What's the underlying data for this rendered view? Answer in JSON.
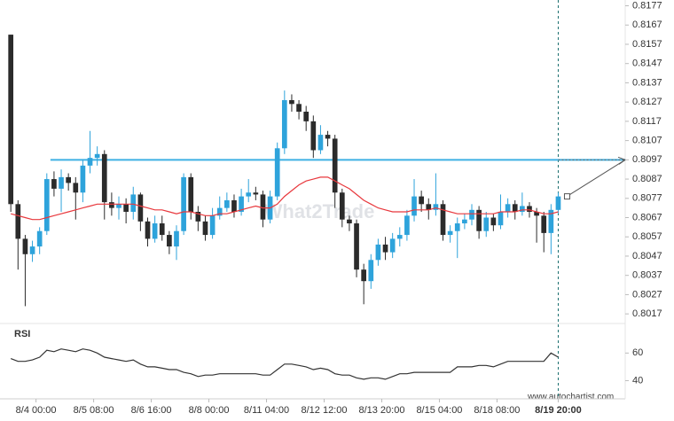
{
  "chart_data": [
    {
      "type": "candlestick",
      "open": [
        0.8162,
        0.8074,
        0.8056,
        0.8048,
        0.8052,
        0.806,
        0.8087,
        0.8082,
        0.8088,
        0.8085,
        0.808,
        0.8094,
        0.8098,
        0.81,
        0.8075,
        0.8072,
        0.8074,
        0.807,
        0.8079,
        0.8065,
        0.8056,
        0.8064,
        0.8058,
        0.8052,
        0.806,
        0.8088,
        0.807,
        0.8065,
        0.8058,
        0.8068,
        0.8072,
        0.8076,
        0.807,
        0.8078,
        0.808,
        0.8079,
        0.8066,
        0.8078,
        0.8103,
        0.8128,
        0.8126,
        0.8122,
        0.8117,
        0.8102,
        0.811,
        0.8108,
        0.808,
        0.8066,
        0.8064,
        0.804,
        0.8034,
        0.8045,
        0.8053,
        0.8049,
        0.8056,
        0.8058,
        0.8068,
        0.8078,
        0.8074,
        0.8071,
        0.8074,
        0.8058,
        0.806,
        0.8064,
        0.8066,
        0.8071,
        0.806,
        0.8067,
        0.8063,
        0.807,
        0.8074,
        0.807,
        0.8073,
        0.807,
        0.8068,
        0.8059,
        0.8071
      ],
      "high": [
        0.8162,
        0.8076,
        0.8058,
        0.8055,
        0.8062,
        0.809,
        0.8091,
        0.8092,
        0.809,
        0.8088,
        0.8097,
        0.8112,
        0.8104,
        0.8102,
        0.808,
        0.8078,
        0.8077,
        0.8083,
        0.808,
        0.8067,
        0.8068,
        0.8068,
        0.806,
        0.8063,
        0.809,
        0.809,
        0.8073,
        0.8068,
        0.8072,
        0.8078,
        0.808,
        0.8079,
        0.8082,
        0.8087,
        0.8083,
        0.8081,
        0.8081,
        0.8106,
        0.8133,
        0.8131,
        0.8128,
        0.8125,
        0.812,
        0.8115,
        0.8112,
        0.811,
        0.8082,
        0.8068,
        0.8066,
        0.8043,
        0.8048,
        0.8056,
        0.8057,
        0.8059,
        0.8062,
        0.8071,
        0.8087,
        0.8081,
        0.8077,
        0.809,
        0.8076,
        0.8063,
        0.8067,
        0.8069,
        0.8074,
        0.8073,
        0.807,
        0.8069,
        0.8079,
        0.8077,
        0.8076,
        0.808,
        0.8075,
        0.8072,
        0.807,
        0.8074,
        0.808
      ],
      "low": [
        0.807,
        0.804,
        0.8021,
        0.8044,
        0.8048,
        0.8058,
        0.8078,
        0.807,
        0.8081,
        0.8066,
        0.8075,
        0.809,
        0.8094,
        0.8066,
        0.8068,
        0.8066,
        0.8064,
        0.8066,
        0.806,
        0.8052,
        0.8054,
        0.8055,
        0.8048,
        0.8045,
        0.8058,
        0.8066,
        0.806,
        0.8055,
        0.8056,
        0.8066,
        0.807,
        0.8067,
        0.8068,
        0.8075,
        0.8076,
        0.8062,
        0.8064,
        0.8076,
        0.81,
        0.8122,
        0.8118,
        0.8112,
        0.8098,
        0.81,
        0.8104,
        0.8072,
        0.8062,
        0.806,
        0.8036,
        0.8022,
        0.803,
        0.8042,
        0.8045,
        0.8046,
        0.8052,
        0.8055,
        0.8065,
        0.807,
        0.8066,
        0.8068,
        0.8055,
        0.8054,
        0.8046,
        0.8061,
        0.8063,
        0.8056,
        0.8057,
        0.806,
        0.8061,
        0.8067,
        0.8066,
        0.8068,
        0.8067,
        0.8054,
        0.8049,
        0.8048,
        0.8069
      ],
      "close": [
        0.8074,
        0.8056,
        0.8048,
        0.8052,
        0.806,
        0.8087,
        0.8082,
        0.8088,
        0.8085,
        0.808,
        0.8094,
        0.8098,
        0.81,
        0.8075,
        0.8072,
        0.8074,
        0.807,
        0.8079,
        0.8065,
        0.8056,
        0.8064,
        0.8058,
        0.8052,
        0.806,
        0.8088,
        0.807,
        0.8065,
        0.8058,
        0.8068,
        0.8072,
        0.8076,
        0.807,
        0.8078,
        0.808,
        0.8079,
        0.8066,
        0.8078,
        0.8103,
        0.8128,
        0.8126,
        0.8122,
        0.8117,
        0.8102,
        0.811,
        0.8108,
        0.808,
        0.8066,
        0.8064,
        0.804,
        0.8034,
        0.8045,
        0.8053,
        0.8049,
        0.8056,
        0.8058,
        0.8068,
        0.8078,
        0.8074,
        0.8071,
        0.8074,
        0.8058,
        0.806,
        0.8064,
        0.8066,
        0.8071,
        0.806,
        0.8067,
        0.8063,
        0.807,
        0.8074,
        0.807,
        0.8073,
        0.807,
        0.8068,
        0.8059,
        0.8071,
        0.8078
      ],
      "up_color": "#2ea3db",
      "down_color": "#2b2b2b",
      "moving_average": {
        "color": "#e8383d",
        "values": [
          0.8069,
          0.8068,
          0.8067,
          0.8066,
          0.8066,
          0.8067,
          0.8068,
          0.8069,
          0.807,
          0.8071,
          0.8072,
          0.8073,
          0.8074,
          0.8074,
          0.8074,
          0.8074,
          0.8074,
          0.8074,
          0.8073,
          0.8072,
          0.8071,
          0.8071,
          0.807,
          0.8069,
          0.807,
          0.807,
          0.8069,
          0.8068,
          0.8068,
          0.8069,
          0.8069,
          0.807,
          0.8071,
          0.8072,
          0.8073,
          0.8072,
          0.8072,
          0.8074,
          0.8078,
          0.8081,
          0.8084,
          0.8086,
          0.8087,
          0.8088,
          0.8088,
          0.8086,
          0.8084,
          0.8082,
          0.8079,
          0.8076,
          0.8074,
          0.8072,
          0.8071,
          0.807,
          0.807,
          0.807,
          0.8071,
          0.8071,
          0.8071,
          0.8072,
          0.8071,
          0.807,
          0.8069,
          0.8069,
          0.8069,
          0.8069,
          0.8069,
          0.8069,
          0.807,
          0.807,
          0.807,
          0.8071,
          0.8071,
          0.807,
          0.8069,
          0.8069,
          0.807
        ]
      },
      "level": {
        "value": 0.8097,
        "start": 5.5,
        "color": "#3fb1e3"
      },
      "xlim": [
        -1.5,
        85.3
      ],
      "xticks": [
        {
          "value": 3.5,
          "label": "8/4 00:00"
        },
        {
          "value": 11.5,
          "label": "8/5 08:00"
        },
        {
          "value": 19.5,
          "label": "8/6 16:00"
        },
        {
          "value": 27.5,
          "label": "8/8 00:00"
        },
        {
          "value": 35.5,
          "label": "8/11 04:00"
        },
        {
          "value": 43.5,
          "label": "8/12 12:00"
        },
        {
          "value": 51.5,
          "label": "8/13 20:00"
        },
        {
          "value": 59.5,
          "label": "8/15 04:00"
        },
        {
          "value": 67.5,
          "label": "8/18 08:00"
        },
        {
          "value": 76,
          "label": "8/19 20:00"
        }
      ],
      "ylim": [
        0.8012,
        0.818
      ],
      "yticks": [
        0.8017,
        0.8027,
        0.8037,
        0.8047,
        0.8057,
        0.8067,
        0.8077,
        0.8087,
        0.8097,
        0.8107,
        0.8117,
        0.8127,
        0.8137,
        0.8147,
        0.8157,
        0.8167,
        0.8177
      ]
    },
    {
      "type": "line",
      "title": "RSI",
      "color": "#333333",
      "values": [
        56,
        54,
        54,
        55,
        57,
        62,
        61,
        63,
        62,
        61,
        63,
        62,
        60,
        57,
        56,
        55,
        54,
        55,
        52,
        50,
        50,
        49,
        48,
        48,
        46,
        45,
        43,
        44,
        44,
        45,
        45,
        45,
        45,
        45,
        45,
        44,
        44,
        48,
        52,
        52,
        51,
        50,
        48,
        49,
        48,
        45,
        44,
        44,
        42,
        41,
        42,
        42,
        41,
        43,
        45,
        45,
        46,
        46,
        46,
        46,
        46,
        46,
        50,
        50,
        50,
        51,
        51,
        50,
        52,
        54,
        54,
        54,
        54,
        54,
        54,
        60,
        57
      ],
      "ylim": [
        30,
        75
      ],
      "yticks": [
        40,
        60
      ]
    }
  ],
  "watermark": "What2Trade",
  "footer": "www.autochartist.com"
}
